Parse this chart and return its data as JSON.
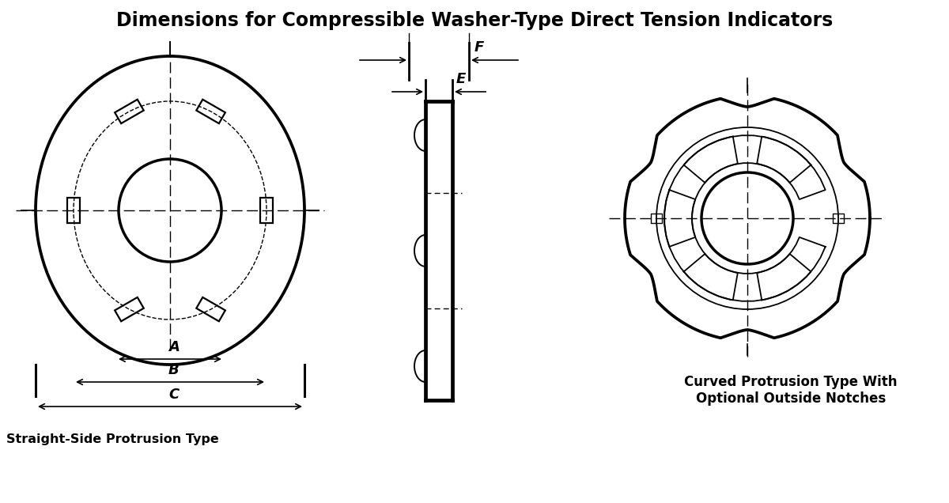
{
  "title": "Dimensions for Compressible Washer-Type Direct Tension Indicators",
  "title_fontsize": 17,
  "label_A": "A",
  "label_B": "B",
  "label_C": "C",
  "label_E": "E",
  "label_F": "F",
  "label_left": "Straight-Side Protrusion Type",
  "label_right": "Curved Protrusion Type With\nOptional Outside Notches",
  "bg_color": "#ffffff",
  "line_color": "#000000"
}
